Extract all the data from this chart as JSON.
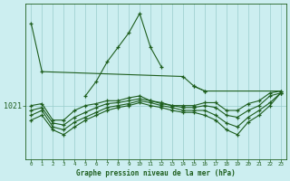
{
  "xlabel": "Graphe pression niveau de la mer (hPa)",
  "x_ticks": [
    0,
    1,
    2,
    3,
    4,
    5,
    6,
    7,
    8,
    9,
    10,
    11,
    12,
    13,
    14,
    15,
    16,
    17,
    18,
    19,
    20,
    21,
    22,
    23
  ],
  "ylim_min": 1015.5,
  "ylim_max": 1031.5,
  "ytick_val": 1021,
  "background_color": "#cceef0",
  "plot_bg_color": "#cceef0",
  "grid_color": "#99cccc",
  "line_color": "#1e5e1e",
  "series": [
    [
      1029.5,
      1024.5,
      null,
      null,
      null,
      null,
      null,
      null,
      null,
      null,
      null,
      null,
      null,
      null,
      1024.0,
      1023.0,
      1022.5,
      null,
      null,
      null,
      null,
      null,
      null,
      null
    ],
    [
      null,
      null,
      null,
      null,
      null,
      1022.0,
      1023.5,
      1025.5,
      1027.0,
      1028.5,
      1030.5,
      1027.0,
      1025.0,
      null,
      null,
      null,
      null,
      null,
      null,
      null,
      null,
      null,
      null,
      null
    ],
    [
      null,
      null,
      null,
      null,
      null,
      null,
      null,
      null,
      null,
      null,
      null,
      null,
      null,
      null,
      null,
      1023.0,
      1022.5,
      null,
      null,
      null,
      null,
      null,
      null,
      1022.5
    ],
    [
      1021.0,
      1021.2,
      1019.5,
      1019.5,
      1020.5,
      1021.0,
      1021.2,
      1021.5,
      1021.5,
      1021.8,
      1022.0,
      1021.5,
      1021.3,
      1021.0,
      1021.0,
      1021.0,
      1021.3,
      1021.3,
      1020.5,
      1020.5,
      1021.2,
      1021.5,
      1022.3,
      1022.5
    ],
    [
      1020.5,
      1020.8,
      1019.2,
      1019.0,
      1019.8,
      1020.3,
      1020.8,
      1021.2,
      1021.3,
      1021.5,
      1021.7,
      1021.5,
      1021.2,
      1021.0,
      1020.8,
      1020.8,
      1021.0,
      1020.8,
      1020.0,
      1019.8,
      1020.5,
      1021.0,
      1022.0,
      1022.3
    ],
    [
      1020.0,
      1020.5,
      1018.8,
      1018.5,
      1019.3,
      1019.8,
      1020.3,
      1020.8,
      1021.0,
      1021.2,
      1021.5,
      1021.3,
      1021.0,
      1020.8,
      1020.5,
      1020.5,
      1020.5,
      1020.0,
      1019.2,
      1018.8,
      1019.8,
      1020.5,
      1021.3,
      1022.3
    ],
    [
      1019.5,
      1020.0,
      1018.5,
      1018.0,
      1018.8,
      1019.5,
      1020.0,
      1020.5,
      1020.8,
      1021.0,
      1021.3,
      1021.0,
      1020.8,
      1020.5,
      1020.3,
      1020.3,
      1020.0,
      1019.5,
      1018.5,
      1018.0,
      1019.3,
      1020.0,
      1021.0,
      1022.3
    ]
  ]
}
